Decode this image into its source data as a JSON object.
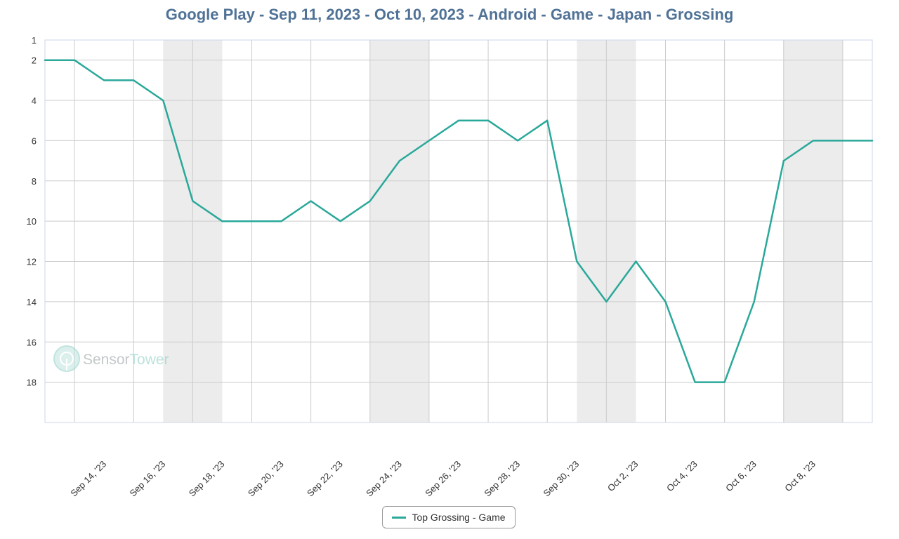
{
  "chart_data": {
    "type": "line",
    "title": "Google Play - Sep 11, 2023 - Oct 10, 2023 - Android - Game - Japan - Grossing",
    "xlabel": "",
    "ylabel": "",
    "y_reversed": true,
    "ylim": [
      1,
      20
    ],
    "y_ticks": [
      1,
      2,
      4,
      6,
      8,
      10,
      12,
      14,
      16,
      18
    ],
    "x_start": "2023-09-12",
    "x_end": "2023-10-10",
    "x_tick_dates": [
      "2023-09-14",
      "2023-09-16",
      "2023-09-18",
      "2023-09-20",
      "2023-09-22",
      "2023-09-24",
      "2023-09-26",
      "2023-09-28",
      "2023-09-30",
      "2023-10-02",
      "2023-10-04",
      "2023-10-06",
      "2023-10-08"
    ],
    "x_tick_labels": [
      "Sep 14, '23",
      "Sep 16, '23",
      "Sep 18, '23",
      "Sep 20, '23",
      "Sep 22, '23",
      "Sep 24, '23",
      "Sep 26, '23",
      "Sep 28, '23",
      "Sep 30, '23",
      "Oct 2, '23",
      "Oct 4, '23",
      "Oct 6, '23",
      "Oct 8, '23"
    ],
    "weekend_bands": [
      [
        "2023-09-16",
        "2023-09-17"
      ],
      [
        "2023-09-23",
        "2023-09-24"
      ],
      [
        "2023-09-30",
        "2023-10-01"
      ],
      [
        "2023-10-07",
        "2023-10-08"
      ]
    ],
    "grid": true,
    "legend_position": "bottom-center",
    "series": [
      {
        "name": "Top Grossing - Game",
        "color": "#2aa89a",
        "dates": [
          "2023-09-12",
          "2023-09-13",
          "2023-09-14",
          "2023-09-15",
          "2023-09-16",
          "2023-09-17",
          "2023-09-18",
          "2023-09-19",
          "2023-09-20",
          "2023-09-21",
          "2023-09-22",
          "2023-09-23",
          "2023-09-24",
          "2023-09-25",
          "2023-09-26",
          "2023-09-27",
          "2023-09-28",
          "2023-09-29",
          "2023-09-30",
          "2023-10-01",
          "2023-10-02",
          "2023-10-03",
          "2023-10-04",
          "2023-10-05",
          "2023-10-06",
          "2023-10-07",
          "2023-10-08",
          "2023-10-09",
          "2023-10-10"
        ],
        "values": [
          2,
          2,
          3,
          3,
          4,
          9,
          10,
          10,
          10,
          9,
          10,
          9,
          7,
          6,
          5,
          5,
          6,
          5,
          12,
          14,
          12,
          14,
          18,
          18,
          14,
          7,
          6,
          6,
          6
        ]
      }
    ]
  },
  "watermark": {
    "logo_icon": "sensortower-logo-icon",
    "text_part1": "Sensor",
    "text_part2": "Tower"
  },
  "colors": {
    "line": "#2aa89a",
    "title": "#4f7296",
    "band": "#ececec",
    "grid": "#cccccc"
  }
}
